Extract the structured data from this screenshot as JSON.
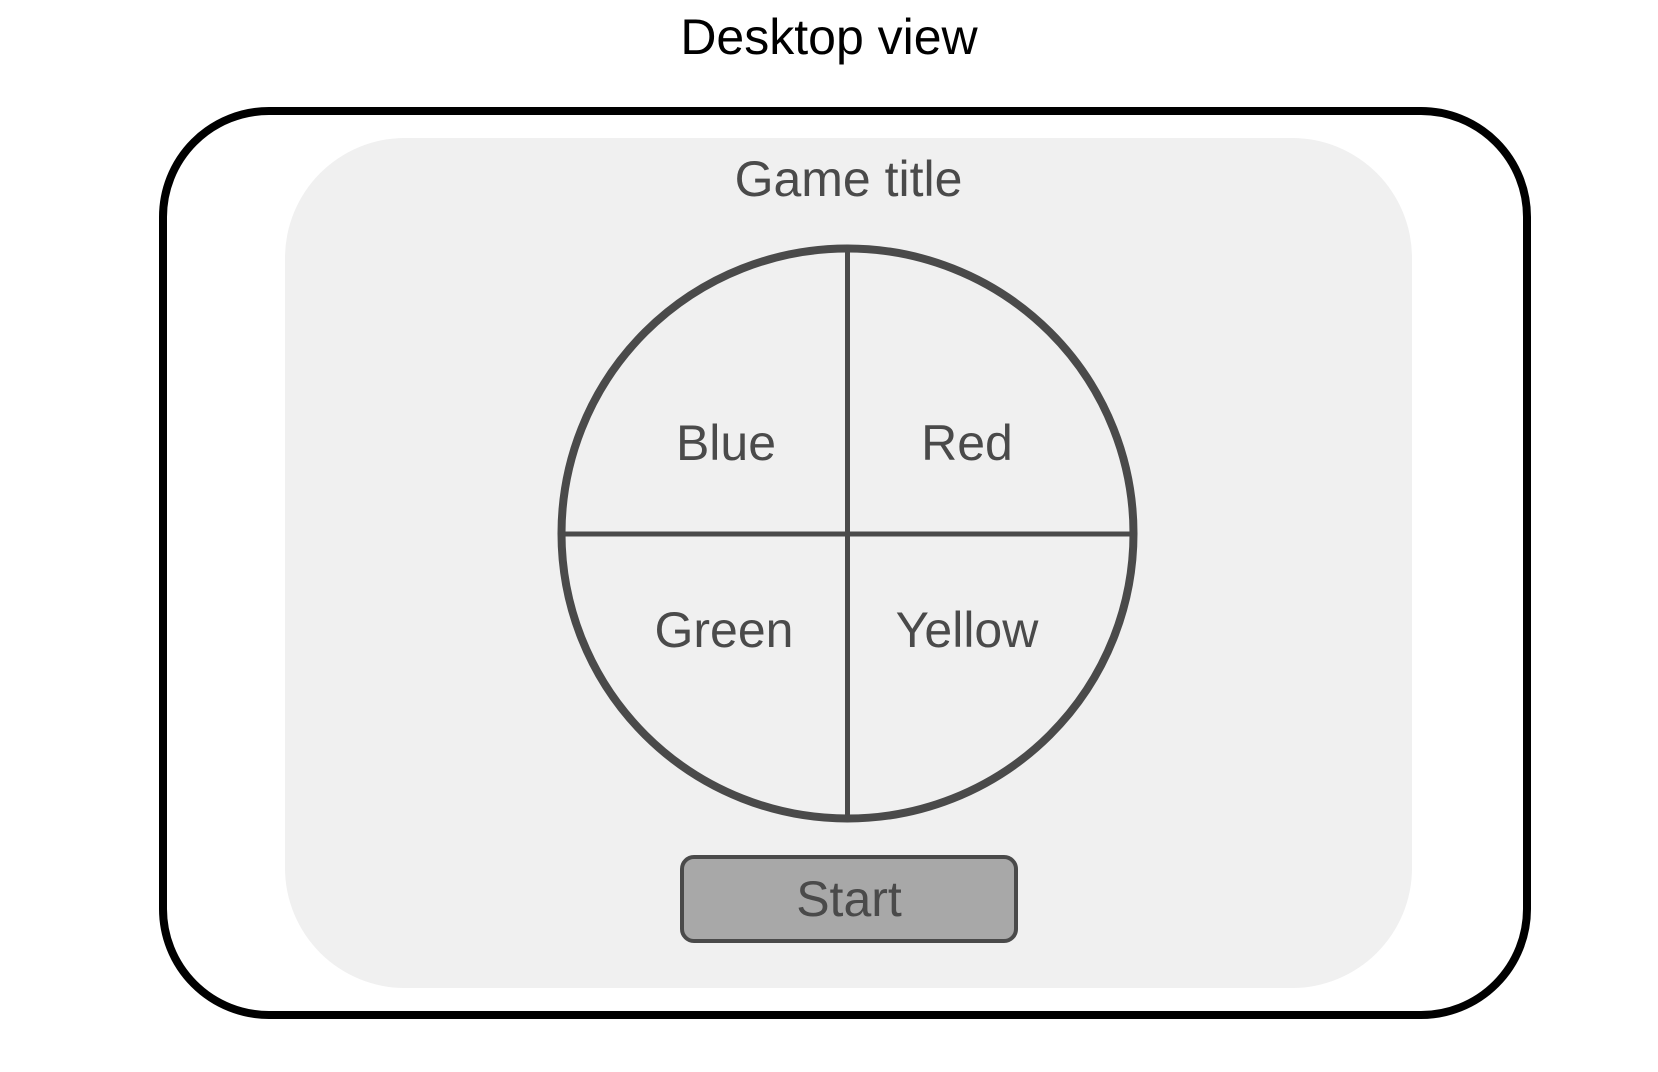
{
  "view_title": "Desktop view",
  "game": {
    "title": "Game title",
    "segments": [
      {
        "label": "Blue"
      },
      {
        "label": "Red"
      },
      {
        "label": "Green"
      },
      {
        "label": "Yellow"
      }
    ],
    "start_label": "Start"
  },
  "colors": {
    "frame": "#000000",
    "screen_bg": "#f0f0f0",
    "board_stroke": "#4a4a4a",
    "text": "#4a4a4a",
    "button_fill": "#a8a8a8"
  }
}
